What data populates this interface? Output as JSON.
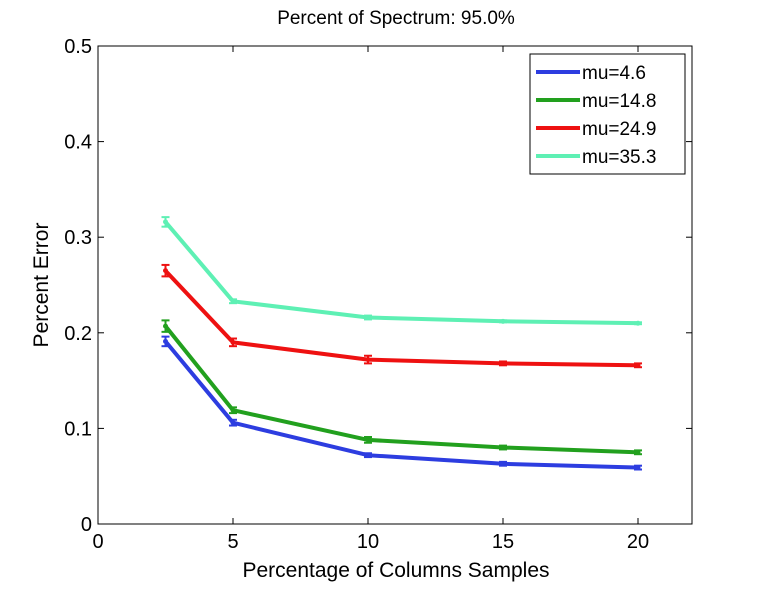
{
  "chart_data": {
    "type": "line",
    "title": "Percent of Spectrum: 95.0%",
    "xlabel": "Percentage of Columns Samples",
    "ylabel": "Percent Error",
    "xlim": [
      0,
      22
    ],
    "ylim": [
      0,
      0.5
    ],
    "xticks": [
      0,
      5,
      10,
      15,
      20
    ],
    "xtick_labels": [
      "0",
      "5",
      "10",
      "15",
      "20"
    ],
    "yticks": [
      0,
      0.1,
      0.2,
      0.3,
      0.4,
      0.5
    ],
    "ytick_labels": [
      "0",
      "0.1",
      "0.2",
      "0.3",
      "0.4",
      "0.5"
    ],
    "grid": false,
    "legend_position": "top-right",
    "x": [
      2.5,
      5,
      10,
      15,
      20
    ],
    "series": [
      {
        "name": "mu=4.6",
        "color": "#2d3de0",
        "values": [
          0.191,
          0.106,
          0.072,
          0.063,
          0.059
        ],
        "errors": [
          0.005,
          0.003,
          0.002,
          0.002,
          0.002
        ]
      },
      {
        "name": "mu=14.8",
        "color": "#22a01e",
        "values": [
          0.207,
          0.119,
          0.088,
          0.08,
          0.075
        ],
        "errors": [
          0.006,
          0.003,
          0.003,
          0.002,
          0.002
        ]
      },
      {
        "name": "mu=24.9",
        "color": "#ee1111",
        "values": [
          0.265,
          0.19,
          0.172,
          0.168,
          0.166
        ],
        "errors": [
          0.006,
          0.004,
          0.004,
          0.002,
          0.002
        ]
      },
      {
        "name": "mu=35.3",
        "color": "#5ef0b4",
        "values": [
          0.316,
          0.233,
          0.216,
          0.212,
          0.21
        ],
        "errors": [
          0.005,
          0.002,
          0.002,
          0.001,
          0.001
        ]
      }
    ]
  }
}
